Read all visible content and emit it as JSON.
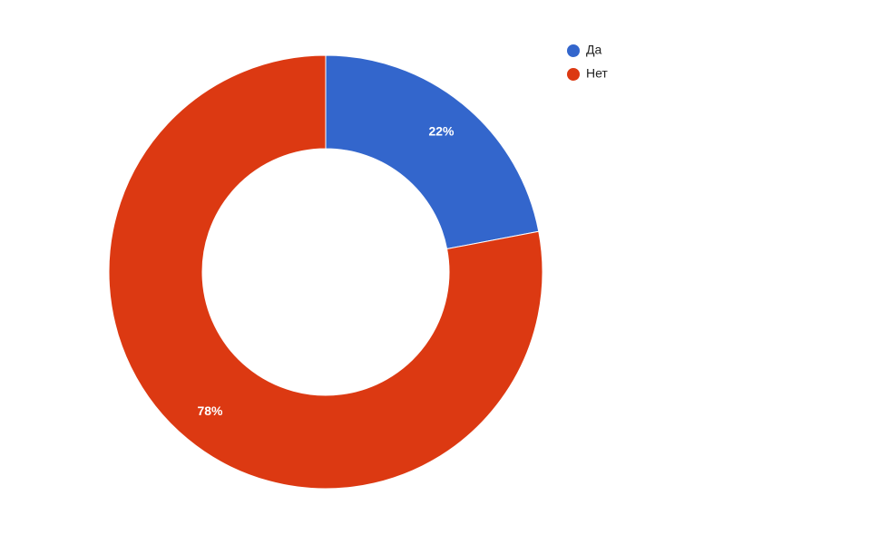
{
  "chart_data": {
    "type": "donut",
    "categories": [
      "Да",
      "Нет"
    ],
    "values": [
      22,
      78
    ],
    "value_labels": [
      "22%",
      "78%"
    ],
    "colors": [
      "#3366cc",
      "#dc3912"
    ],
    "legend": "top-right"
  }
}
